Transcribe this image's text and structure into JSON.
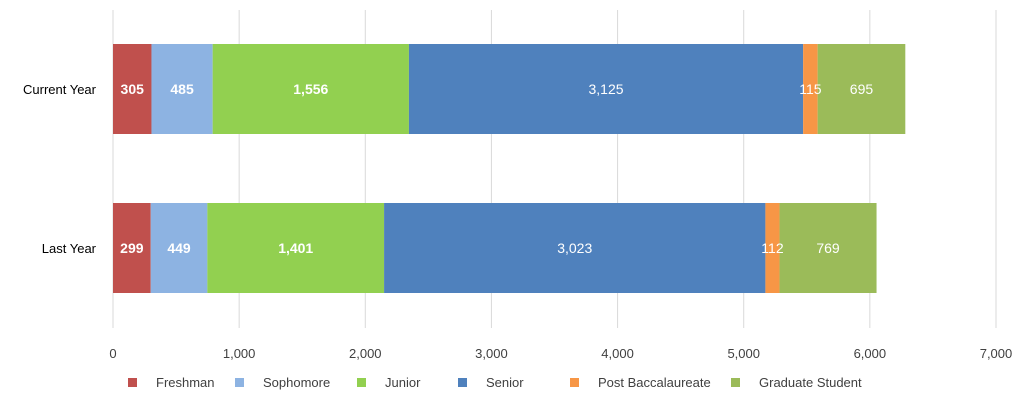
{
  "chart_data": {
    "type": "bar",
    "orientation": "horizontal",
    "stacked": true,
    "title": "",
    "xlabel": "",
    "ylabel": "",
    "xlim": [
      0,
      7000
    ],
    "x_ticks": [
      "0",
      "1,000",
      "2,000",
      "3,000",
      "4,000",
      "5,000",
      "6,000",
      "7,000"
    ],
    "categories": [
      "Current Year",
      "Last Year"
    ],
    "series": [
      {
        "name": "Freshman",
        "color": "#c0504d",
        "values": [
          305,
          299
        ],
        "labels": [
          "305",
          "299"
        ],
        "bold": true,
        "label_color": "#ffffff"
      },
      {
        "name": "Sophomore",
        "color": "#8db3e2",
        "values": [
          485,
          449
        ],
        "labels": [
          "485",
          "449"
        ],
        "bold": true,
        "label_color": "#ffffff"
      },
      {
        "name": "Junior",
        "color": "#92d050",
        "values": [
          1556,
          1401
        ],
        "labels": [
          "1,556",
          "1,401"
        ],
        "bold": true,
        "label_color": "#ffffff"
      },
      {
        "name": "Senior",
        "color": "#4f81bd",
        "values": [
          3125,
          3023
        ],
        "labels": [
          "3,125",
          "3,023"
        ],
        "bold": false,
        "label_color": "#ffffff"
      },
      {
        "name": "Post Baccalaureate",
        "color": "#f79646",
        "values": [
          115,
          112
        ],
        "labels": [
          "115",
          "112"
        ],
        "bold": false,
        "label_color": "#ffffff"
      },
      {
        "name": "Graduate Student",
        "color": "#9bbb59",
        "values": [
          695,
          769
        ],
        "labels": [
          "695",
          "769"
        ],
        "bold": false,
        "label_color": "#ffffff"
      }
    ],
    "grid": true,
    "legend_position": "bottom"
  }
}
